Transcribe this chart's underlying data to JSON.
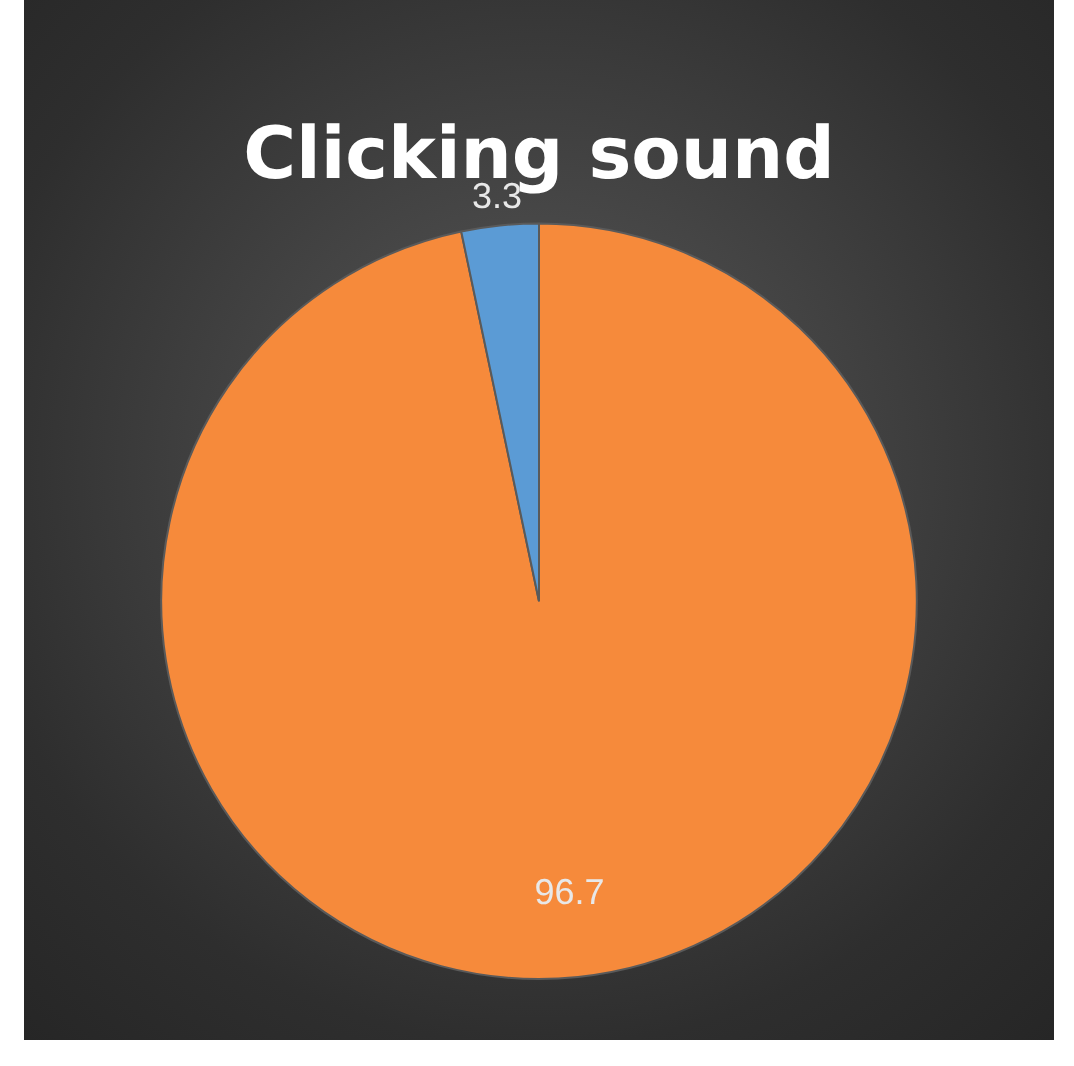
{
  "chart_data": {
    "type": "pie",
    "title": "Clicking sound",
    "categories": [
      null,
      null
    ],
    "values": [
      96.7,
      3.3
    ],
    "colors": [
      "#f68a3b",
      "#5b9bd5"
    ],
    "data_labels": true,
    "legend": false
  }
}
